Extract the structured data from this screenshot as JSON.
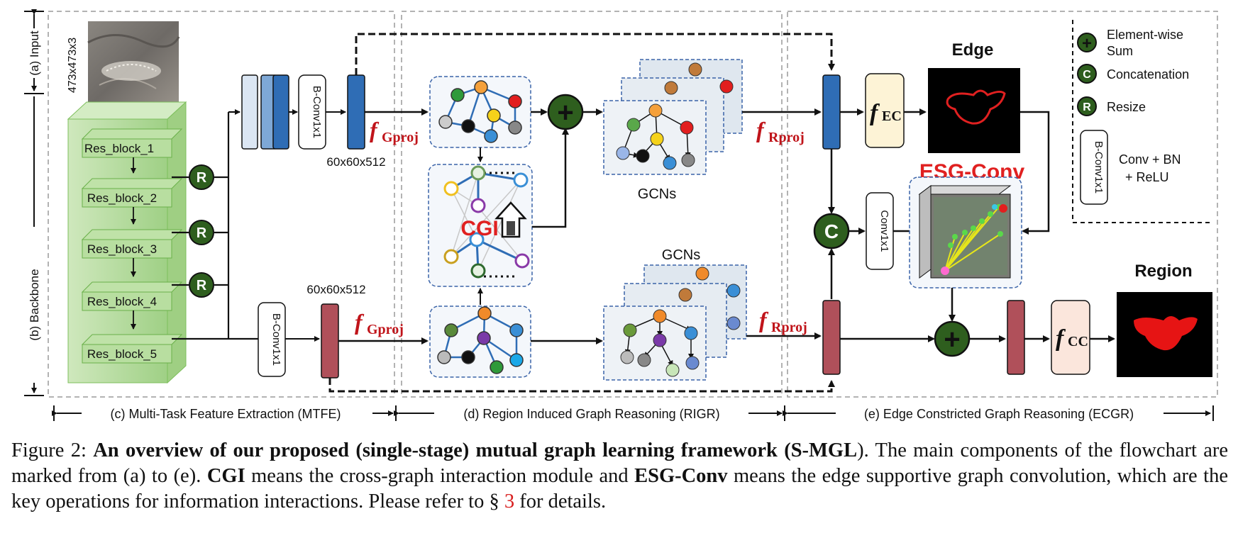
{
  "regions": {
    "input": "(a) Input",
    "backbone": "(b) Backbone",
    "mtfe": "(c) Multi-Task Feature Extraction (MTFE)",
    "rigr": "(d) Region Induced Graph Reasoning (RIGR)",
    "ecgr": "(e) Edge Constricted Graph Reasoning (ECGR)"
  },
  "input_size": "473x473x3",
  "res_blocks": [
    "Res_block_1",
    "Res_block_2",
    "Res_block_3",
    "Res_block_4",
    "Res_block_5"
  ],
  "resize_symbol": "R",
  "concat_symbol": "C",
  "sum_symbol": "+",
  "conv_label": "B-Conv1x1",
  "conv_label_plain": "Conv1x1",
  "feature_size": "60x60x512",
  "f_gproj": {
    "base": "f",
    "sub": "Gproj"
  },
  "f_rproj": {
    "base": "f",
    "sub": "Rproj"
  },
  "f_ec": {
    "base": "f",
    "sub": "EC"
  },
  "f_cc": {
    "base": "f",
    "sub": "CC"
  },
  "cgi": "CGI",
  "gcns": "GCNs",
  "edge_title": "Edge",
  "region_title": "Region",
  "esg_conv": "ESG-Conv",
  "legend": {
    "sum": [
      "Element-wise",
      "Sum"
    ],
    "concat": "Concatenation",
    "resize": "Resize",
    "conv": [
      "Conv + BN",
      "+ ReLU"
    ]
  },
  "caption": {
    "label": "Figure 2: ",
    "bold_title": "An overview of our proposed (single-stage) mutual graph learning framework (",
    "bold_abbr": "S-MGL",
    "close": ")",
    "sentence1": ". The main components of the flowchart are marked from (a) to (e). ",
    "cgi": "CGI",
    "cgi_def": " means the cross-graph interaction module and ",
    "esg": "ESG-Conv",
    "esg_def": " means the edge supportive graph convolution, which are the key operations for information interactions. Please refer to § ",
    "ref": "3",
    "tail": " for details."
  },
  "colors": {
    "blue_block": "#2f6db5",
    "red_block": "#b0505a",
    "green_node": "#2e5e1e",
    "fproj_red": "#c0141a",
    "esg_red": "#e02020",
    "backbone_green": "#a9d78e"
  }
}
